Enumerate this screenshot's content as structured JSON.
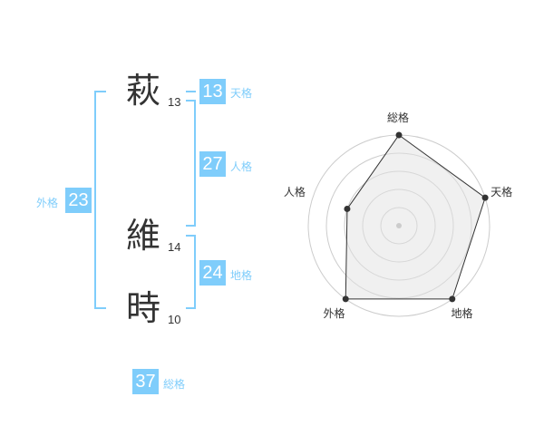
{
  "name": {
    "chars": [
      {
        "char": "萩",
        "strokes": "13"
      },
      {
        "char": "維",
        "strokes": "14"
      },
      {
        "char": "時",
        "strokes": "10"
      }
    ]
  },
  "kaku": {
    "tenkaku": {
      "label": "天格",
      "value": "13"
    },
    "jinkaku": {
      "label": "人格",
      "value": "27"
    },
    "chikaku": {
      "label": "地格",
      "value": "24"
    },
    "gaikaku": {
      "label": "外格",
      "value": "23"
    },
    "soukaku": {
      "label": "総格",
      "value": "37"
    }
  },
  "colors": {
    "accent": "#7fcdfb",
    "fill": "#f0f0f0",
    "line": "#333333"
  },
  "chart_data": {
    "type": "radar",
    "axes": [
      "総格",
      "天格",
      "地格",
      "外格",
      "人格"
    ],
    "values": [
      5,
      5,
      5,
      5,
      3
    ],
    "range": [
      0,
      5
    ],
    "rings": 5
  }
}
